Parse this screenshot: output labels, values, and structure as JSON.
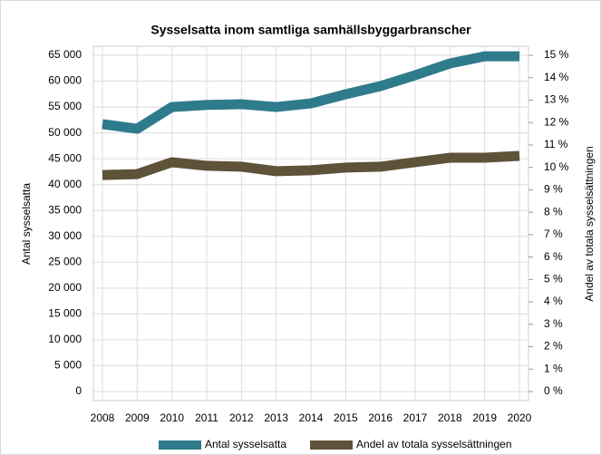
{
  "chart_data": {
    "type": "line",
    "title": "Sysselsatta inom samtliga samhällsbyggarbranscher",
    "y_label": "Antal sysselsatta",
    "y2_label": "Andel av totala sysselsättningen",
    "categories": [
      "2008",
      "2009",
      "2010",
      "2011",
      "2012",
      "2013",
      "2014",
      "2015",
      "2016",
      "2017",
      "2018",
      "2019",
      "2020"
    ],
    "series": [
      {
        "name": "Antal sysselsatta",
        "color": "#2e7b8c",
        "values": [
          51700,
          50800,
          55000,
          55400,
          55550,
          55000,
          55700,
          57470,
          59040,
          61150,
          63420,
          64800,
          64800
        ]
      },
      {
        "name": "Andel av totala sysselsättningen",
        "color": "#5e5239",
        "axis": "y2",
        "values": [
          9.66,
          9.7,
          10.23,
          10.07,
          10.03,
          9.83,
          9.87,
          9.99,
          10.03,
          10.23,
          10.43,
          10.43,
          10.51
        ]
      }
    ],
    "ylim": [
      0,
      65000
    ],
    "yticks": [
      0,
      {
        "value": 5000,
        "label": "5 000"
      },
      {
        "value": 10000,
        "label": "10 000"
      },
      {
        "value": 15000,
        "label": "15 000"
      },
      {
        "value": 20000,
        "label": "20 000"
      },
      {
        "value": 25000,
        "label": "25 000"
      },
      {
        "value": 30000,
        "label": "30 000"
      },
      {
        "value": 35000,
        "label": "35 000"
      },
      {
        "value": 40000,
        "label": "40 000"
      },
      {
        "value": 45000,
        "label": "45 000"
      },
      {
        "value": 50000,
        "label": "50 000"
      },
      {
        "value": 55000,
        "label": "55 000"
      },
      {
        "value": 60000,
        "label": "60 000"
      },
      {
        "value": 65000,
        "label": "65 000"
      }
    ],
    "y2lim": [
      0,
      15
    ],
    "y2ticks": [
      {
        "value": 0,
        "label": "0 %"
      },
      {
        "value": 1,
        "label": "1 %"
      },
      {
        "value": 2,
        "label": "2 %"
      },
      {
        "value": 3,
        "label": "3 %"
      },
      {
        "value": 4,
        "label": "4 %"
      },
      {
        "value": 5,
        "label": "5 %"
      },
      {
        "value": 6,
        "label": "6 %"
      },
      {
        "value": 7,
        "label": "7 %"
      },
      {
        "value": 8,
        "label": "8 %"
      },
      {
        "value": 9,
        "label": "9 %"
      },
      {
        "value": 10,
        "label": "10 %"
      },
      {
        "value": 11,
        "label": "11 %"
      },
      {
        "value": 12,
        "label": "12 %"
      },
      {
        "value": 13,
        "label": "13 %"
      },
      {
        "value": 14,
        "label": "14 %"
      },
      {
        "value": 15,
        "label": "15 %"
      }
    ],
    "grid": true,
    "legend": "bottom"
  }
}
